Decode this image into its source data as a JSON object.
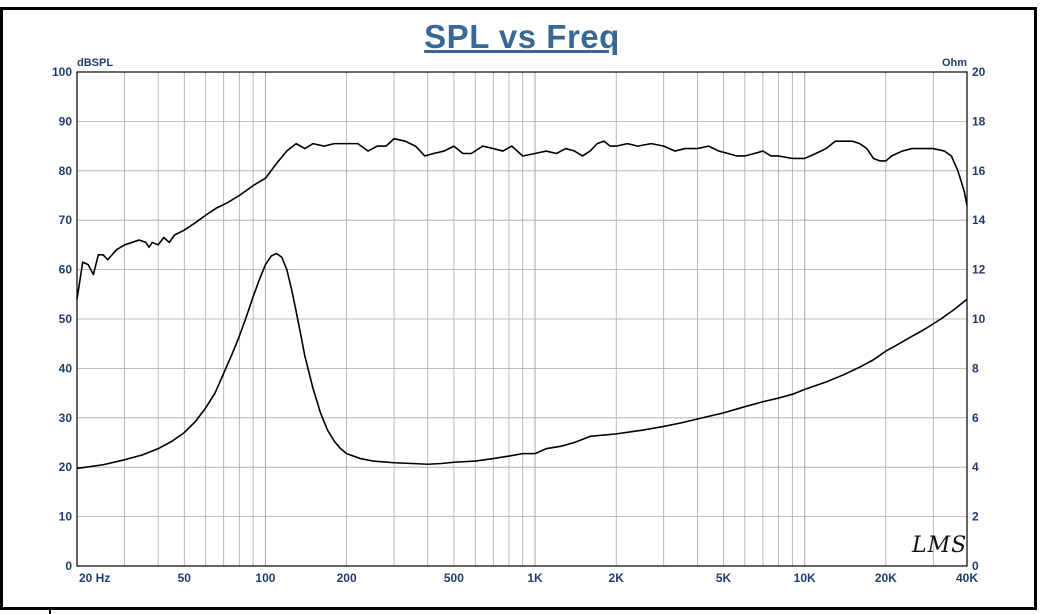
{
  "chart_data": {
    "type": "line",
    "title": "SPL vs Freq",
    "x_scale": "log",
    "xlim": [
      20,
      40000
    ],
    "x_ticks": [
      {
        "value": 20,
        "label": "20  Hz"
      },
      {
        "value": 50,
        "label": "50"
      },
      {
        "value": 100,
        "label": "100"
      },
      {
        "value": 200,
        "label": "200"
      },
      {
        "value": 500,
        "label": "500"
      },
      {
        "value": 1000,
        "label": "1K"
      },
      {
        "value": 2000,
        "label": "2K"
      },
      {
        "value": 5000,
        "label": "5K"
      },
      {
        "value": 10000,
        "label": "10K"
      },
      {
        "value": 20000,
        "label": "20K"
      },
      {
        "value": 40000,
        "label": "40K"
      }
    ],
    "y_left": {
      "label": "dBSPL",
      "ylim": [
        0,
        100
      ],
      "ticks": [
        0,
        10,
        20,
        30,
        40,
        50,
        60,
        70,
        80,
        90,
        100
      ]
    },
    "y_right": {
      "label": "Ohm",
      "ylim": [
        0,
        20
      ],
      "ticks": [
        0,
        2,
        4,
        6,
        8,
        10,
        12,
        14,
        16,
        18,
        20
      ]
    },
    "grid": true,
    "series": [
      {
        "axis": "left",
        "points": [
          [
            20,
            54
          ],
          [
            21,
            61.5
          ],
          [
            22,
            61
          ],
          [
            23,
            59
          ],
          [
            24,
            63
          ],
          [
            25,
            63
          ],
          [
            26,
            62
          ],
          [
            28,
            64
          ],
          [
            30,
            65
          ],
          [
            32,
            65.5
          ],
          [
            34,
            66
          ],
          [
            36,
            65.5
          ],
          [
            37,
            64.5
          ],
          [
            38,
            65.5
          ],
          [
            40,
            65
          ],
          [
            42,
            66.5
          ],
          [
            44,
            65.5
          ],
          [
            46,
            67
          ],
          [
            50,
            68
          ],
          [
            55,
            69.5
          ],
          [
            60,
            71
          ],
          [
            66,
            72.5
          ],
          [
            72,
            73.5
          ],
          [
            80,
            75
          ],
          [
            90,
            77
          ],
          [
            100,
            78.5
          ],
          [
            110,
            81.5
          ],
          [
            120,
            84
          ],
          [
            130,
            85.5
          ],
          [
            140,
            84.5
          ],
          [
            150,
            85.5
          ],
          [
            165,
            85
          ],
          [
            180,
            85.5
          ],
          [
            200,
            85.5
          ],
          [
            220,
            85.5
          ],
          [
            240,
            84
          ],
          [
            260,
            85
          ],
          [
            280,
            85
          ],
          [
            300,
            86.5
          ],
          [
            330,
            86
          ],
          [
            360,
            85
          ],
          [
            390,
            83
          ],
          [
            420,
            83.5
          ],
          [
            460,
            84
          ],
          [
            500,
            85
          ],
          [
            540,
            83.5
          ],
          [
            580,
            83.5
          ],
          [
            640,
            85
          ],
          [
            700,
            84.5
          ],
          [
            760,
            84
          ],
          [
            820,
            85
          ],
          [
            900,
            83
          ],
          [
            1000,
            83.5
          ],
          [
            1100,
            84
          ],
          [
            1200,
            83.5
          ],
          [
            1300,
            84.5
          ],
          [
            1400,
            84
          ],
          [
            1500,
            83
          ],
          [
            1600,
            84
          ],
          [
            1700,
            85.5
          ],
          [
            1800,
            86
          ],
          [
            1900,
            85
          ],
          [
            2000,
            85
          ],
          [
            2200,
            85.5
          ],
          [
            2400,
            85
          ],
          [
            2700,
            85.5
          ],
          [
            3000,
            85
          ],
          [
            3300,
            84
          ],
          [
            3600,
            84.5
          ],
          [
            4000,
            84.5
          ],
          [
            4400,
            85
          ],
          [
            4800,
            84
          ],
          [
            5200,
            83.5
          ],
          [
            5600,
            83
          ],
          [
            6000,
            83
          ],
          [
            6500,
            83.5
          ],
          [
            7000,
            84
          ],
          [
            7500,
            83
          ],
          [
            8000,
            83
          ],
          [
            9000,
            82.5
          ],
          [
            10000,
            82.5
          ],
          [
            11000,
            83.5
          ],
          [
            12000,
            84.5
          ],
          [
            13000,
            86
          ],
          [
            14000,
            86
          ],
          [
            15000,
            86
          ],
          [
            16000,
            85.5
          ],
          [
            17000,
            84.5
          ],
          [
            18000,
            82.5
          ],
          [
            19000,
            82
          ],
          [
            20000,
            82
          ],
          [
            21000,
            83
          ],
          [
            23000,
            84
          ],
          [
            25000,
            84.5
          ],
          [
            28000,
            84.5
          ],
          [
            30000,
            84.5
          ],
          [
            33000,
            84
          ],
          [
            35000,
            83
          ],
          [
            37000,
            80
          ],
          [
            39000,
            76
          ],
          [
            40000,
            73
          ]
        ]
      },
      {
        "axis": "right",
        "points": [
          [
            20,
            3.95
          ],
          [
            25,
            4.1
          ],
          [
            30,
            4.3
          ],
          [
            35,
            4.5
          ],
          [
            40,
            4.75
          ],
          [
            45,
            5.05
          ],
          [
            50,
            5.4
          ],
          [
            55,
            5.85
          ],
          [
            60,
            6.4
          ],
          [
            65,
            7.0
          ],
          [
            70,
            7.8
          ],
          [
            75,
            8.55
          ],
          [
            80,
            9.3
          ],
          [
            85,
            10.1
          ],
          [
            90,
            10.9
          ],
          [
            95,
            11.6
          ],
          [
            100,
            12.2
          ],
          [
            105,
            12.55
          ],
          [
            110,
            12.65
          ],
          [
            115,
            12.5
          ],
          [
            120,
            12.0
          ],
          [
            125,
            11.2
          ],
          [
            130,
            10.3
          ],
          [
            135,
            9.4
          ],
          [
            140,
            8.5
          ],
          [
            150,
            7.2
          ],
          [
            160,
            6.2
          ],
          [
            170,
            5.5
          ],
          [
            180,
            5.05
          ],
          [
            190,
            4.75
          ],
          [
            200,
            4.55
          ],
          [
            225,
            4.35
          ],
          [
            250,
            4.25
          ],
          [
            300,
            4.18
          ],
          [
            350,
            4.15
          ],
          [
            400,
            4.12
          ],
          [
            450,
            4.15
          ],
          [
            500,
            4.2
          ],
          [
            600,
            4.25
          ],
          [
            700,
            4.35
          ],
          [
            800,
            4.45
          ],
          [
            900,
            4.55
          ],
          [
            1000,
            4.55
          ],
          [
            1100,
            4.75
          ],
          [
            1250,
            4.85
          ],
          [
            1400,
            5.0
          ],
          [
            1600,
            5.25
          ],
          [
            1800,
            5.3
          ],
          [
            2000,
            5.35
          ],
          [
            2500,
            5.5
          ],
          [
            3000,
            5.65
          ],
          [
            3500,
            5.8
          ],
          [
            4000,
            5.95
          ],
          [
            5000,
            6.2
          ],
          [
            6000,
            6.45
          ],
          [
            7000,
            6.65
          ],
          [
            8000,
            6.8
          ],
          [
            9000,
            6.95
          ],
          [
            10000,
            7.15
          ],
          [
            12000,
            7.45
          ],
          [
            14000,
            7.75
          ],
          [
            16000,
            8.05
          ],
          [
            18000,
            8.35
          ],
          [
            20000,
            8.7
          ],
          [
            22000,
            8.95
          ],
          [
            25000,
            9.3
          ],
          [
            28000,
            9.6
          ],
          [
            32000,
            10.0
          ],
          [
            36000,
            10.4
          ],
          [
            40000,
            10.8
          ]
        ]
      }
    ]
  },
  "logo_text": "LMS"
}
